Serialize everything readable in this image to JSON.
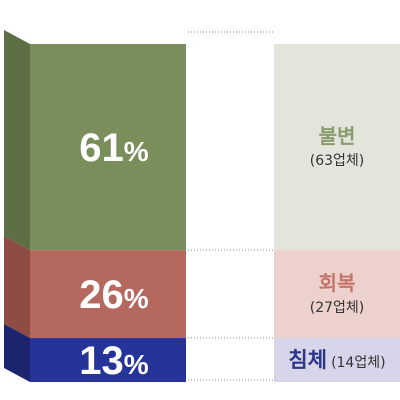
{
  "chart_data": {
    "type": "bar",
    "subtype": "stacked-100",
    "title": "",
    "xlabel": "",
    "ylabel": "",
    "ylim": [
      0,
      100
    ],
    "segments": [
      {
        "label": "불변",
        "count": "(63업체)",
        "value": 61,
        "value_label": "61%",
        "front": "#7a8e5c",
        "side": "#5e6f46",
        "top": "#8fa46c",
        "panel_bg": "#e3e5dd",
        "name_color": "#8a9b6e"
      },
      {
        "label": "회복",
        "count": "(27업체)",
        "value": 26,
        "value_label": "26%",
        "front": "#b5685e",
        "side": "#8e4c44",
        "top": "#c67a6f",
        "panel_bg": "#ecd1cc",
        "name_color": "#c4756b"
      },
      {
        "label": "침체",
        "count": "(14업체)",
        "value": 13,
        "value_label": "13%",
        "front": "#26349a",
        "side": "#1c2470",
        "top": "#30409f",
        "panel_bg": "#d7d5ea",
        "name_color": "#2a3688"
      }
    ]
  }
}
